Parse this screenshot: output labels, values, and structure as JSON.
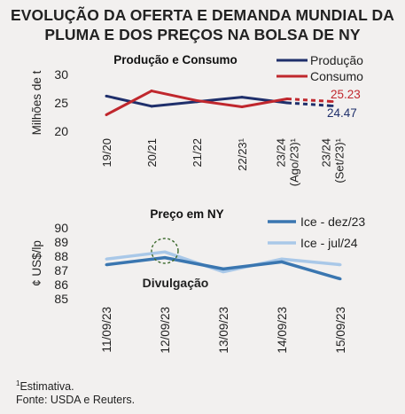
{
  "title_line1": "EVOLUÇÃO DA OFERTA E DEMANDA MUNDIAL DA",
  "title_line2": "PLUMA E DOS PREÇOS NA BOLSA DE NY",
  "footnote_mark": "1",
  "footnote": "Estimativa.",
  "source": "Fonte: USDA e Reuters.",
  "colors": {
    "producao": "#1f2f6b",
    "consumo": "#c0272d",
    "ice_dez23": "#3a76b0",
    "ice_jul24": "#a9c8e8",
    "annotation_circle": "#3d6b2e"
  },
  "chart_data": [
    {
      "type": "line",
      "title": "Produção e Consumo",
      "ylabel": "Milhões de t",
      "ylim": [
        20,
        30
      ],
      "yticks": [
        "20",
        "25",
        "30"
      ],
      "categories": [
        "19/20",
        "20/21",
        "21/22",
        "22/23¹",
        "23/24 (Ago/23)¹",
        "23/24 (Set/23)¹"
      ],
      "category_lines": [
        [
          "19/20"
        ],
        [
          "20/21"
        ],
        [
          "21/22"
        ],
        [
          "22/23¹"
        ],
        [
          "23/24",
          "(Ago/23)¹"
        ],
        [
          "23/24",
          "(Set/23)¹"
        ]
      ],
      "dashed_from_index": 4,
      "series": [
        {
          "name": "Produção",
          "color": "#1f2f6b",
          "values": [
            26.2,
            24.4,
            25.2,
            26.0,
            25.0,
            24.47
          ]
        },
        {
          "name": "Consumo",
          "color": "#c0272d",
          "values": [
            22.9,
            27.1,
            25.4,
            24.3,
            25.7,
            25.23
          ]
        }
      ],
      "data_labels": [
        {
          "series": "Consumo",
          "index": 5,
          "text": "25.23"
        },
        {
          "series": "Produção",
          "index": 5,
          "text": "24.47"
        }
      ],
      "legend": "top-right"
    },
    {
      "type": "line",
      "title": "Preço em NY",
      "ylabel": "¢ US$/lp",
      "ylim": [
        85,
        90
      ],
      "yticks": [
        "85",
        "86",
        "87",
        "88",
        "89",
        "90"
      ],
      "categories": [
        "11/09/23",
        "12/09/23",
        "13/09/23",
        "14/09/23",
        "15/09/23"
      ],
      "series": [
        {
          "name": "Ice - dez/23",
          "color": "#3a76b0",
          "values": [
            87.4,
            87.9,
            87.1,
            87.6,
            86.4
          ]
        },
        {
          "name": "Ice - jul/24",
          "color": "#a9c8e8",
          "values": [
            87.8,
            88.3,
            86.9,
            87.8,
            87.4
          ]
        }
      ],
      "annotation": {
        "text": "Divulgação",
        "index": 1
      },
      "legend": "top-right"
    }
  ]
}
